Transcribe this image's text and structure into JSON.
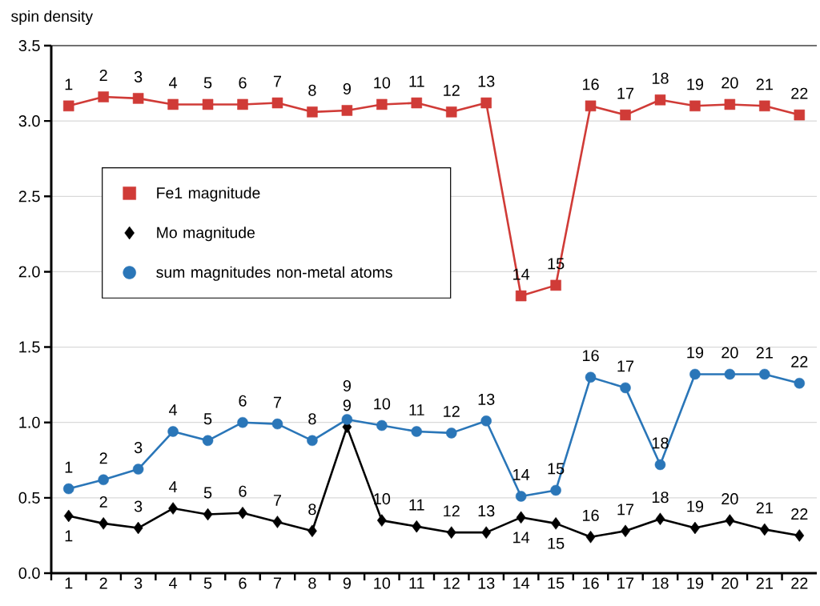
{
  "chart_data": {
    "type": "line",
    "ylabel": "spin density",
    "x": [
      1,
      2,
      3,
      4,
      5,
      6,
      7,
      8,
      9,
      10,
      11,
      12,
      13,
      14,
      15,
      16,
      17,
      18,
      19,
      20,
      21,
      22
    ],
    "series": [
      {
        "name": "Fe1 magnitude",
        "color": "#d03b37",
        "marker": "square",
        "values": [
          3.1,
          3.16,
          3.15,
          3.11,
          3.11,
          3.11,
          3.12,
          3.06,
          3.07,
          3.11,
          3.12,
          3.06,
          3.12,
          1.84,
          1.91,
          3.1,
          3.04,
          3.14,
          3.1,
          3.11,
          3.1,
          3.04
        ]
      },
      {
        "name": "Mo magnitude",
        "color": "#000000",
        "marker": "diamond",
        "values": [
          0.38,
          0.33,
          0.3,
          0.43,
          0.39,
          0.4,
          0.34,
          0.28,
          0.97,
          0.35,
          0.31,
          0.27,
          0.27,
          0.37,
          0.33,
          0.24,
          0.28,
          0.36,
          0.3,
          0.35,
          0.29,
          0.25
        ]
      },
      {
        "name": "sum magnitudes non-metal atoms",
        "color": "#2a76b8",
        "marker": "circle",
        "values": [
          0.56,
          0.62,
          0.69,
          0.94,
          0.88,
          1.0,
          0.99,
          0.88,
          1.02,
          0.98,
          0.94,
          0.93,
          1.01,
          0.51,
          0.55,
          1.3,
          1.23,
          0.72,
          1.32,
          1.32,
          1.32,
          1.26
        ]
      }
    ],
    "annotations": [
      {
        "text": "1",
        "x": 1,
        "y": 3.1
      },
      {
        "text": "2",
        "x": 2,
        "y": 3.16
      },
      {
        "text": "3",
        "x": 3,
        "y": 3.15
      },
      {
        "text": "4",
        "x": 4,
        "y": 3.11
      },
      {
        "text": "5",
        "x": 5,
        "y": 3.11
      },
      {
        "text": "6",
        "x": 6,
        "y": 3.11
      },
      {
        "text": "7",
        "x": 7,
        "y": 3.12
      },
      {
        "text": "8",
        "x": 8,
        "y": 3.06
      },
      {
        "text": "9",
        "x": 9,
        "y": 3.07
      },
      {
        "text": "10",
        "x": 10,
        "y": 3.11
      },
      {
        "text": "11",
        "x": 11,
        "y": 3.12
      },
      {
        "text": "12",
        "x": 12,
        "y": 3.06
      },
      {
        "text": "13",
        "x": 13,
        "y": 3.12
      },
      {
        "text": "14",
        "x": 14,
        "y": 1.84
      },
      {
        "text": "15",
        "x": 15,
        "y": 1.91
      },
      {
        "text": "16",
        "x": 16,
        "y": 3.1
      },
      {
        "text": "17",
        "x": 17,
        "y": 3.04
      },
      {
        "text": "18",
        "x": 18,
        "y": 3.14
      },
      {
        "text": "19",
        "x": 19,
        "y": 3.1
      },
      {
        "text": "20",
        "x": 20,
        "y": 3.11
      },
      {
        "text": "21",
        "x": 21,
        "y": 3.1
      },
      {
        "text": "22",
        "x": 22,
        "y": 3.04
      },
      {
        "text": "1",
        "x": 1,
        "y": 0.38
      },
      {
        "text": "2",
        "x": 2,
        "y": 0.33
      },
      {
        "text": "3",
        "x": 3,
        "y": 0.3
      },
      {
        "text": "4",
        "x": 4,
        "y": 0.43
      },
      {
        "text": "5",
        "x": 5,
        "y": 0.39
      },
      {
        "text": "6",
        "x": 6,
        "y": 0.4
      },
      {
        "text": "7",
        "x": 7,
        "y": 0.34
      },
      {
        "text": "8",
        "x": 8,
        "y": 0.28
      },
      {
        "text": "9",
        "x": 9,
        "y": 0.97
      },
      {
        "text": "10",
        "x": 10,
        "y": 0.35
      },
      {
        "text": "11",
        "x": 11,
        "y": 0.31
      },
      {
        "text": "12",
        "x": 12,
        "y": 0.27
      },
      {
        "text": "13",
        "x": 13,
        "y": 0.27
      },
      {
        "text": "14",
        "x": 14,
        "y": 0.37
      },
      {
        "text": "15",
        "x": 15,
        "y": 0.33
      },
      {
        "text": "16",
        "x": 16,
        "y": 0.24
      },
      {
        "text": "17",
        "x": 17,
        "y": 0.28
      },
      {
        "text": "18",
        "x": 18,
        "y": 0.36
      },
      {
        "text": "19",
        "x": 19,
        "y": 0.3
      },
      {
        "text": "20",
        "x": 20,
        "y": 0.35
      },
      {
        "text": "21",
        "x": 21,
        "y": 0.29
      },
      {
        "text": "22",
        "x": 22,
        "y": 0.25
      },
      {
        "text": "1",
        "x": 1,
        "y": 0.56
      },
      {
        "text": "2",
        "x": 2,
        "y": 0.62
      },
      {
        "text": "3",
        "x": 3,
        "y": 0.69
      },
      {
        "text": "4",
        "x": 4,
        "y": 0.94
      },
      {
        "text": "5",
        "x": 5,
        "y": 0.88
      },
      {
        "text": "6",
        "x": 6,
        "y": 1.0
      },
      {
        "text": "7",
        "x": 7,
        "y": 0.99
      },
      {
        "text": "8",
        "x": 8,
        "y": 0.88
      },
      {
        "text": "9",
        "x": 9,
        "y": 1.02
      },
      {
        "text": "10",
        "x": 10,
        "y": 0.98
      },
      {
        "text": "11",
        "x": 11,
        "y": 0.94
      },
      {
        "text": "12",
        "x": 12,
        "y": 0.93
      },
      {
        "text": "13",
        "x": 13,
        "y": 1.01
      },
      {
        "text": "14",
        "x": 14,
        "y": 0.51
      },
      {
        "text": "15",
        "x": 15,
        "y": 0.55
      },
      {
        "text": "16",
        "x": 16,
        "y": 1.3
      },
      {
        "text": "17",
        "x": 17,
        "y": 1.23
      },
      {
        "text": "18",
        "x": 18,
        "y": 0.72
      },
      {
        "text": "19",
        "x": 19,
        "y": 1.32
      },
      {
        "text": "20",
        "x": 20,
        "y": 1.32
      },
      {
        "text": "21",
        "x": 21,
        "y": 1.32
      },
      {
        "text": "22",
        "x": 22,
        "y": 1.26
      }
    ],
    "xlim": [
      0.5,
      22.5
    ],
    "xticks": [
      {
        "value": 0.5,
        "label": null
      },
      1,
      {
        "value": 1.5,
        "label": null
      },
      2,
      {
        "value": 2.5,
        "label": null
      },
      3,
      {
        "value": 3.5,
        "label": null
      },
      4,
      {
        "value": 4.5,
        "label": null
      },
      5,
      {
        "value": 5.5,
        "label": null
      },
      6,
      {
        "value": 6.5,
        "label": null
      },
      7,
      {
        "value": 7.5,
        "label": null
      },
      8,
      {
        "value": 8.5,
        "label": null
      },
      9,
      {
        "value": 9.5,
        "label": null
      },
      10,
      {
        "value": 10.5,
        "label": null
      },
      11,
      {
        "value": 11.5,
        "label": null
      },
      12,
      {
        "value": 12.5,
        "label": null
      },
      13,
      {
        "value": 13.5,
        "label": null
      },
      14,
      {
        "value": 14.5,
        "label": null
      },
      15,
      {
        "value": 15.5,
        "label": null
      },
      16,
      {
        "value": 16.5,
        "label": null
      },
      17,
      {
        "value": 17.5,
        "label": null
      },
      18,
      {
        "value": 18.5,
        "label": null
      },
      19,
      {
        "value": 19.5,
        "label": null
      },
      20,
      {
        "value": 20.5,
        "label": null
      },
      21,
      {
        "value": 21.5,
        "label": null
      },
      22
    ],
    "ylim": [
      0,
      3.5
    ],
    "yticks": [
      {
        "value": 0,
        "label": "0.0"
      },
      0.5,
      {
        "value": 1,
        "label": "1.0"
      },
      1.5,
      {
        "value": 2,
        "label": "2.0"
      },
      2.5,
      {
        "value": 3,
        "label": "3.0"
      },
      3.5
    ],
    "grid": "y",
    "legend": "left",
    "line_style": "solid"
  }
}
